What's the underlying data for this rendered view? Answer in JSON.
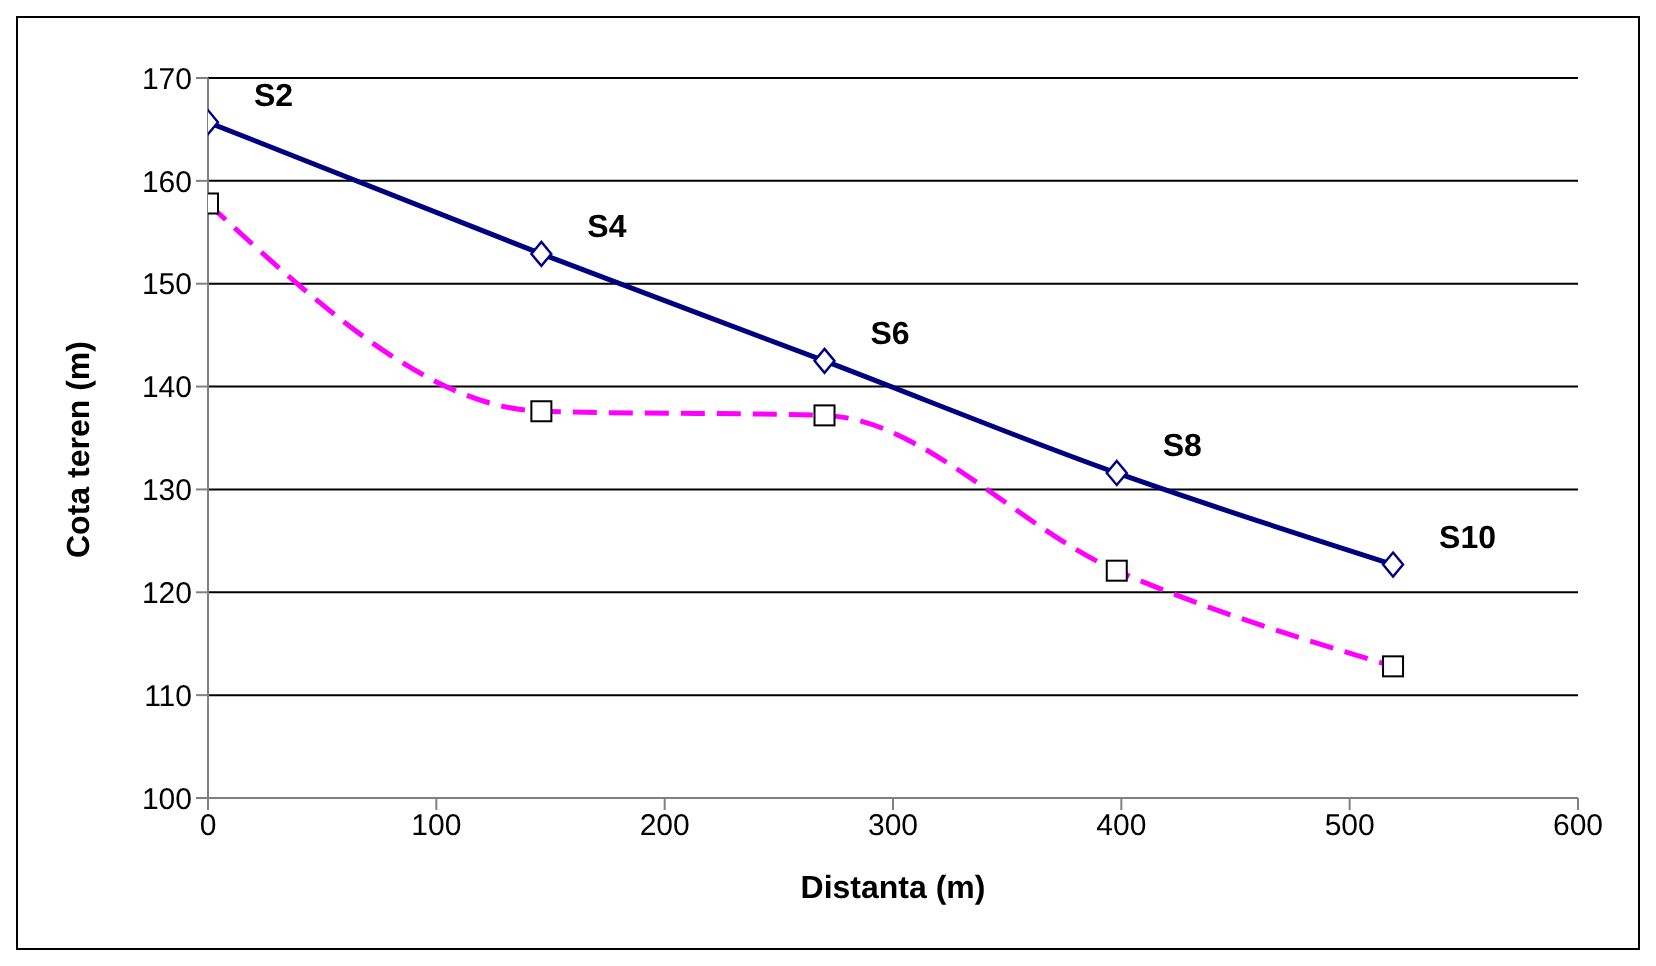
{
  "chart_data": {
    "type": "line",
    "xlabel": "Distanta (m)",
    "ylabel": "Cota teren (m)",
    "x": [
      0,
      146,
      270,
      398,
      519
    ],
    "series": [
      {
        "color": "#000080",
        "values": [
          165.7,
          152.9,
          142.5,
          131.6,
          122.7
        ],
        "marker": "diamond",
        "line_style": "solid"
      },
      {
        "color": "#ff00ff",
        "values": [
          157.8,
          137.6,
          137.2,
          122.1,
          112.8
        ],
        "marker": "square",
        "line_style": "dashed"
      }
    ],
    "xlim": [
      0,
      600
    ],
    "xticks": [
      0,
      100,
      200,
      300,
      400,
      500,
      600
    ],
    "ylim": [
      100,
      170
    ],
    "yticks": [
      100,
      110,
      120,
      130,
      140,
      150,
      160,
      170
    ],
    "grid": "y",
    "legend": false,
    "annotations": [
      {
        "text": "S2",
        "x": 0,
        "y": 165.7
      },
      {
        "text": "S4",
        "x": 146,
        "y": 152.9
      },
      {
        "text": "S6",
        "x": 270,
        "y": 142.5
      },
      {
        "text": "S8",
        "x": 398,
        "y": 131.6
      },
      {
        "text": "S10",
        "x": 519,
        "y": 122.7
      }
    ]
  }
}
